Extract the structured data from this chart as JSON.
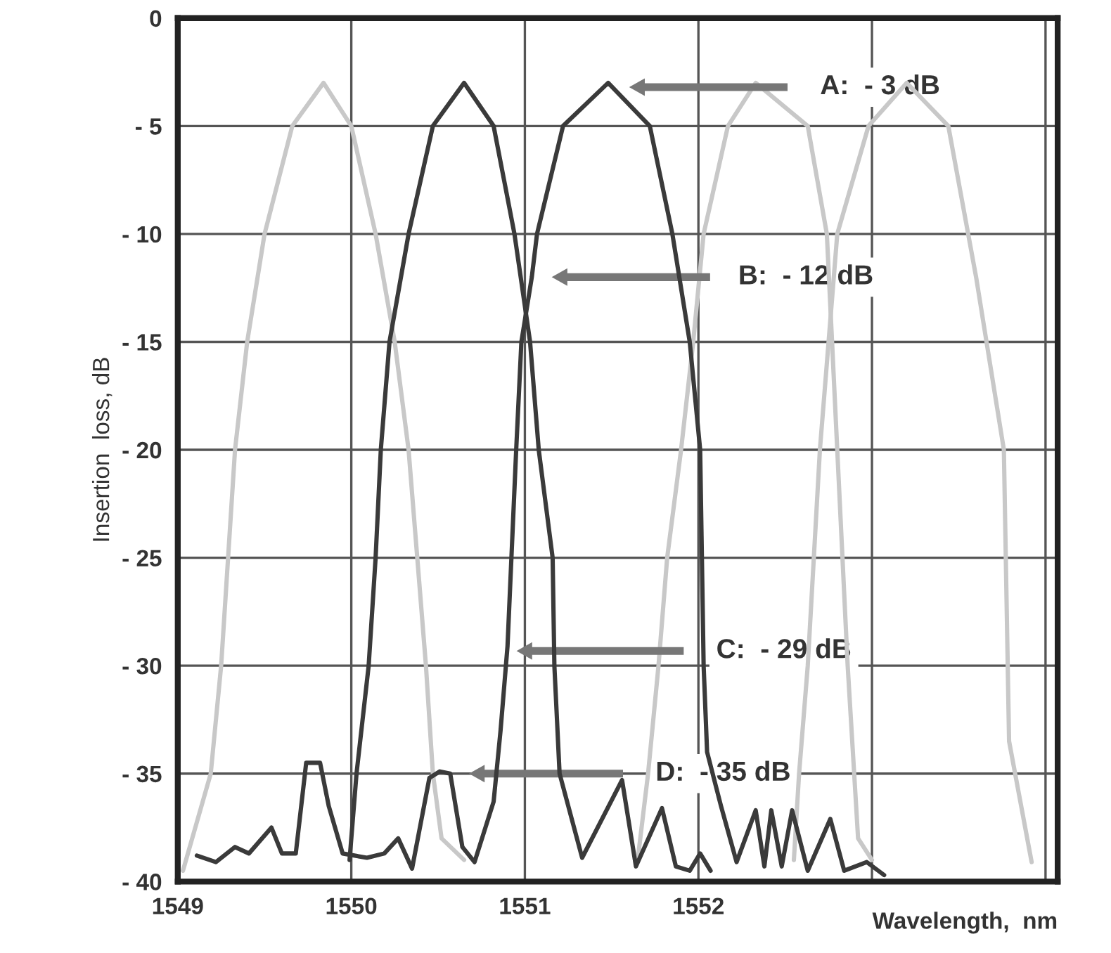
{
  "chart_data": {
    "type": "line",
    "xlabel": "Wavelength,  nm",
    "ylabel": "Insertion  loss, dB",
    "xlim": [
      1549,
      1554.07
    ],
    "ylim": [
      -40,
      0
    ],
    "xticks": [
      1549,
      1550,
      1551,
      1552,
      {
        "value": 1553,
        "label": null
      },
      {
        "value": 1554,
        "label": null
      }
    ],
    "yticks": [
      {
        "value": -40,
        "label": "- 40"
      },
      {
        "value": -35,
        "label": "- 35"
      },
      {
        "value": -30,
        "label": "- 30"
      },
      {
        "value": -25,
        "label": "- 25"
      },
      {
        "value": -20,
        "label": "- 20"
      },
      {
        "value": -15,
        "label": "- 15"
      },
      {
        "value": -10,
        "label": "- 10"
      },
      {
        "value": -5,
        "label": "- 5"
      },
      0
    ],
    "grid": true,
    "legend": false,
    "marker": "none",
    "line_style": "solid",
    "series": [
      {
        "color": "#c8c8c8",
        "x": [
          1549.03,
          1549.19,
          1549.25,
          1549.29,
          1549.33,
          1549.4,
          1549.5,
          1549.66,
          1549.84,
          1550.0,
          1550.14,
          1550.25,
          1550.33,
          1550.38,
          1550.43,
          1550.47,
          1550.52,
          1550.65
        ],
        "values": [
          -39.5,
          -35,
          -30,
          -25,
          -20,
          -15,
          -10,
          -5,
          -3,
          -5,
          -10,
          -15,
          -20,
          -25,
          -30,
          -35,
          -38,
          -39
        ]
      },
      {
        "color": "#c8c8c8",
        "x": [
          1551.65,
          1551.71,
          1551.77,
          1551.82,
          1551.9,
          1551.97,
          1552.03,
          1552.17,
          1552.33,
          1552.63,
          1552.74,
          1552.8,
          1552.86,
          1552.92,
          1553.0
        ],
        "values": [
          -39,
          -35,
          -30,
          -25,
          -20,
          -15,
          -10,
          -5,
          -3,
          -5,
          -10,
          -20,
          -30,
          -38,
          -39
        ]
      },
      {
        "color": "#c8c8c8",
        "x": [
          1552.55,
          1552.58,
          1552.63,
          1552.7,
          1552.8,
          1552.98,
          1553.2,
          1553.44,
          1553.6,
          1553.76,
          1553.79,
          1553.92
        ],
        "values": [
          -39,
          -35,
          -30,
          -20,
          -10,
          -5,
          -3,
          -5,
          -12,
          -20,
          -33.5,
          -39.1
        ]
      },
      {
        "color": "#3a3a3a",
        "x": [
          1549.99,
          1550.03,
          1550.1,
          1550.14,
          1550.17,
          1550.22,
          1550.33,
          1550.47,
          1550.65,
          1550.82,
          1550.94,
          1551.03,
          1551.08,
          1551.16,
          1551.17,
          1551.2,
          1551.33,
          1551.56,
          1551.64,
          1551.79,
          1551.87,
          1551.95,
          1552.01,
          1552.07
        ],
        "values": [
          -39,
          -35,
          -30,
          -25,
          -20,
          -15,
          -10,
          -5,
          -3,
          -5,
          -10,
          -15,
          -20,
          -25,
          -30,
          -35,
          -38.9,
          -35.3,
          -39.3,
          -36.6,
          -39.3,
          -39.5,
          -38.7,
          -39.5
        ]
      },
      {
        "color": "#3a3a3a",
        "x": [
          1549.11,
          1549.22,
          1549.33,
          1549.41,
          1549.54,
          1549.6,
          1549.68,
          1549.74,
          1549.82,
          1549.87,
          1549.95,
          1550.09,
          1550.19,
          1550.27,
          1550.35,
          1550.45,
          1550.51,
          1550.57,
          1550.64,
          1550.71,
          1550.82,
          1550.86,
          1550.9,
          1550.95,
          1550.98,
          1551.04,
          1551.07,
          1551.22,
          1551.48,
          1551.72,
          1551.85,
          1551.95,
          1552.01,
          1552.02,
          1552.03,
          1552.05,
          1552.13,
          1552.22,
          1552.33,
          1552.38,
          1552.42,
          1552.48,
          1552.54,
          1552.63,
          1552.76,
          1552.84,
          1552.97,
          1553.07
        ],
        "values": [
          -38.8,
          -39.1,
          -38.4,
          -38.7,
          -37.5,
          -38.7,
          -38.7,
          -34.5,
          -34.5,
          -36.5,
          -38.7,
          -38.9,
          -38.7,
          -38.0,
          -39.4,
          -35.2,
          -34.9,
          -35.0,
          -38.4,
          -39.1,
          -36.3,
          -33,
          -29.1,
          -20,
          -15,
          -12,
          -10,
          -5,
          -3,
          -5,
          -10,
          -15,
          -20,
          -25,
          -30,
          -34,
          -36.5,
          -39.1,
          -36.7,
          -39.3,
          -36.7,
          -39.3,
          -36.7,
          -39.5,
          -37.1,
          -39.5,
          -39.1,
          -39.7
        ]
      }
    ],
    "annotations": [
      "A:  - 3 dB",
      "B:  - 12 dB",
      "C:  - 29 dB",
      "D:  - 35 dB"
    ]
  }
}
